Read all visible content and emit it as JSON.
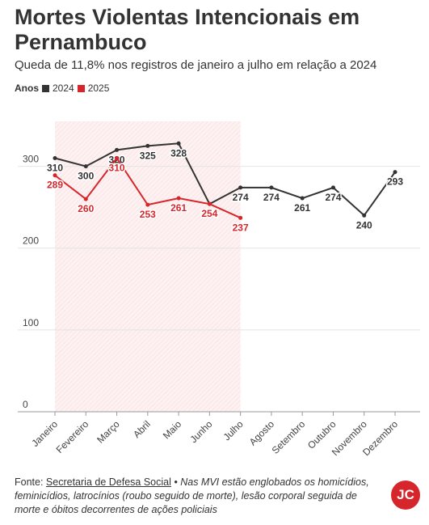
{
  "chart_data": {
    "type": "line",
    "title": "Mortes Violentas Intencionais em Pernambuco",
    "subtitle": "Queda de 11,8% nos registros de janeiro a julho em relação a 2024",
    "legend_title": "Anos",
    "categories": [
      "Janeiro",
      "Fevereiro",
      "Março",
      "Abril",
      "Maio",
      "Junho",
      "Julho",
      "Agosto",
      "Setembro",
      "Outubro",
      "Novembro",
      "Dezembro"
    ],
    "series": [
      {
        "name": "2024",
        "color": "#333333",
        "values": [
          310,
          300,
          320,
          325,
          328,
          254,
          274,
          274,
          261,
          274,
          240,
          293
        ]
      },
      {
        "name": "2025",
        "color": "#d7262b",
        "values": [
          289,
          260,
          310,
          253,
          261,
          254,
          237,
          null,
          null,
          null,
          null,
          null
        ]
      }
    ],
    "ylim": [
      0,
      355
    ],
    "yticks": [
      0,
      100,
      200,
      300
    ],
    "grid": true,
    "source_label": "Fonte:",
    "source": "Secretaria de Defesa Social",
    "note": "• Nas MVI estão englobados os homicídios, feminicídios, latrocínios (roubo seguido de morte), lesão corporal seguida de morte e óbitos decorrentes de ações policiais",
    "logo": "JC"
  }
}
